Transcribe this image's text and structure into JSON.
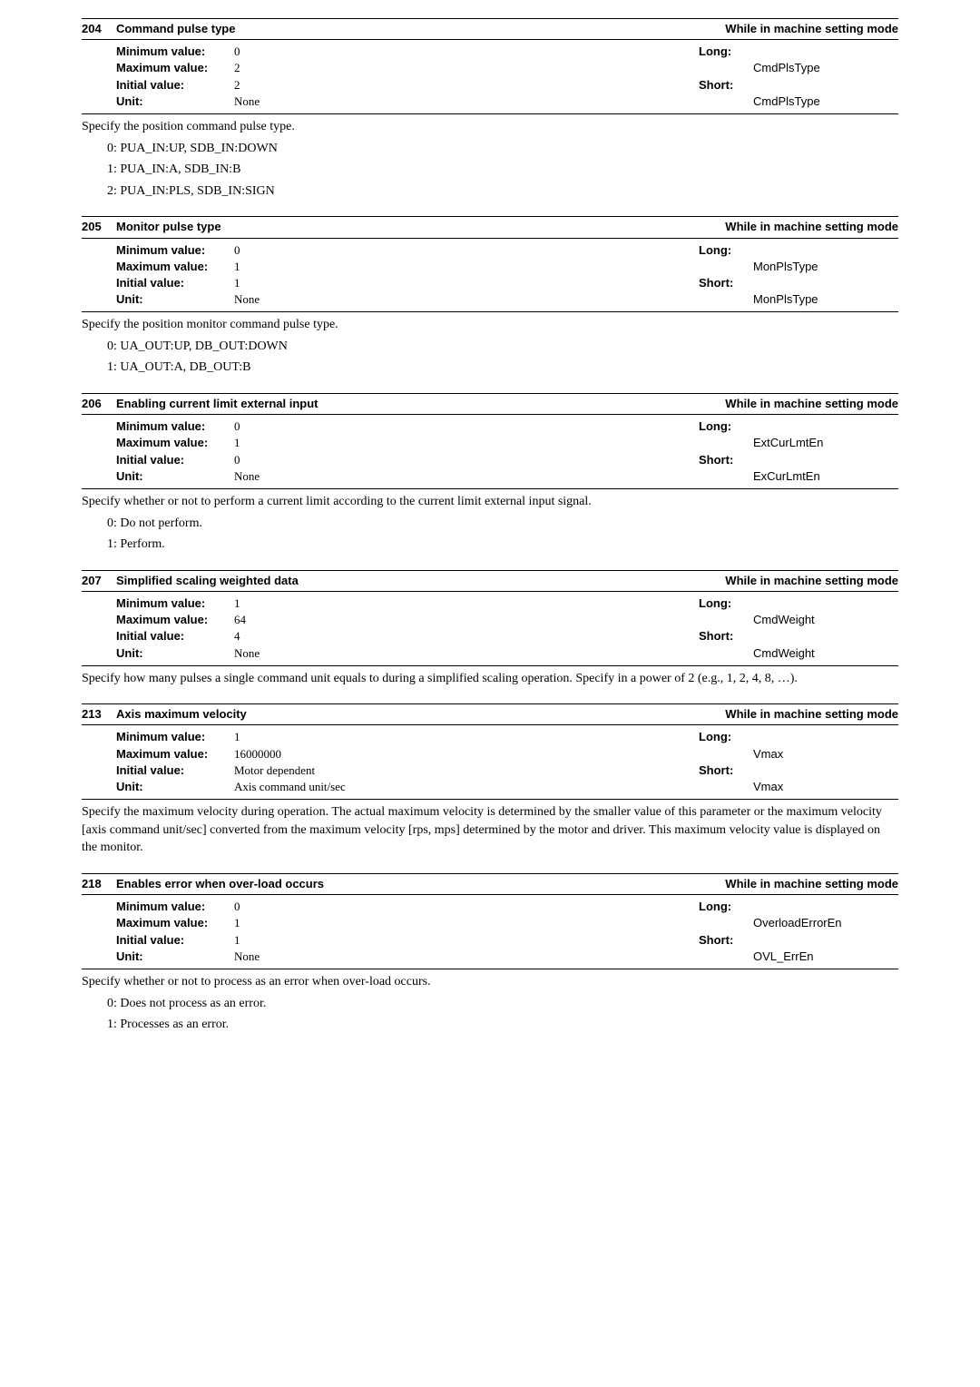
{
  "sections": [
    {
      "number": "204",
      "title": "Command pulse type",
      "mode": "While in machine setting mode",
      "min_label": "Minimum value:",
      "min": "0",
      "max_label": "Maximum value:",
      "max": "2",
      "init_label": "Initial value:",
      "init": "2",
      "unit_label": "Unit:",
      "unit": "None",
      "long_label": "Long:",
      "long": "CmdPlsType",
      "short_label": "Short:",
      "short": "CmdPlsType",
      "desc": "Specify the position command pulse type.",
      "opts": [
        "0:  PUA_IN:UP, SDB_IN:DOWN",
        "1:  PUA_IN:A, SDB_IN:B",
        "2:  PUA_IN:PLS, SDB_IN:SIGN"
      ]
    },
    {
      "number": "205",
      "title": "Monitor pulse type",
      "mode": "While in machine setting mode",
      "min_label": "Minimum value:",
      "min": "0",
      "max_label": "Maximum value:",
      "max": "1",
      "init_label": "Initial value:",
      "init": "1",
      "unit_label": "Unit:",
      "unit": "None",
      "long_label": "Long:",
      "long": "MonPlsType",
      "short_label": "Short:",
      "short": "MonPlsType",
      "desc": "Specify the position monitor command pulse type.",
      "opts": [
        "0:  UA_OUT:UP, DB_OUT:DOWN",
        "1:  UA_OUT:A, DB_OUT:B"
      ]
    },
    {
      "number": "206",
      "title": "Enabling current limit external input",
      "mode": "While in machine setting mode",
      "min_label": "Minimum value:",
      "min": "0",
      "max_label": "Maximum value:",
      "max": "1",
      "init_label": "Initial value:",
      "init": "0",
      "unit_label": "Unit:",
      "unit": "None",
      "long_label": "Long:",
      "long": "ExtCurLmtEn",
      "short_label": "Short:",
      "short": "ExCurLmtEn",
      "desc": "Specify whether or not to perform a current limit according to the current limit external input signal.",
      "opts": [
        "0:  Do not perform.",
        "1:  Perform."
      ]
    },
    {
      "number": "207",
      "title": "Simplified scaling weighted data",
      "mode": "While in machine setting mode",
      "min_label": "Minimum value:",
      "min": "1",
      "max_label": "Maximum value:",
      "max": "64",
      "init_label": "Initial value:",
      "init": "4",
      "unit_label": "Unit:",
      "unit": "None",
      "long_label": "Long:",
      "long": "CmdWeight",
      "short_label": "Short:",
      "short": "CmdWeight",
      "desc": "Specify how many pulses a single command unit equals to during a simplified scaling operation. Specify in a power of 2 (e.g., 1, 2, 4, 8, …).",
      "opts": []
    },
    {
      "number": "213",
      "title": "Axis maximum velocity",
      "mode": "While in machine setting mode",
      "min_label": "Minimum value:",
      "min": "1",
      "max_label": "Maximum value:",
      "max": "16000000",
      "init_label": "Initial value:",
      "init": "Motor dependent",
      "unit_label": "Unit:",
      "unit": "Axis command unit/sec",
      "long_label": "Long:",
      "long": "Vmax",
      "short_label": "Short:",
      "short": "Vmax",
      "desc": "Specify the maximum velocity during operation. The actual maximum velocity is determined by the smaller value of this parameter or the maximum velocity [axis command unit/sec] converted from the maximum velocity [rps, mps] determined by the motor and driver. This maximum velocity value is displayed on the monitor.",
      "opts": []
    },
    {
      "number": "218",
      "title": "Enables error when over-load occurs",
      "mode": "While in machine setting mode",
      "min_label": "Minimum value:",
      "min": "0",
      "max_label": "Maximum value:",
      "max": "1",
      "init_label": "Initial value:",
      "init": "1",
      "unit_label": "Unit:",
      "unit": "None",
      "long_label": "Long:",
      "long": "OverloadErrorEn",
      "short_label": "Short:",
      "short": "OVL_ErrEn",
      "desc": "Specify whether or not to process as an error when over-load occurs.",
      "opts": [
        "0:  Does not process as an error.",
        "1:  Processes as an error."
      ]
    }
  ]
}
